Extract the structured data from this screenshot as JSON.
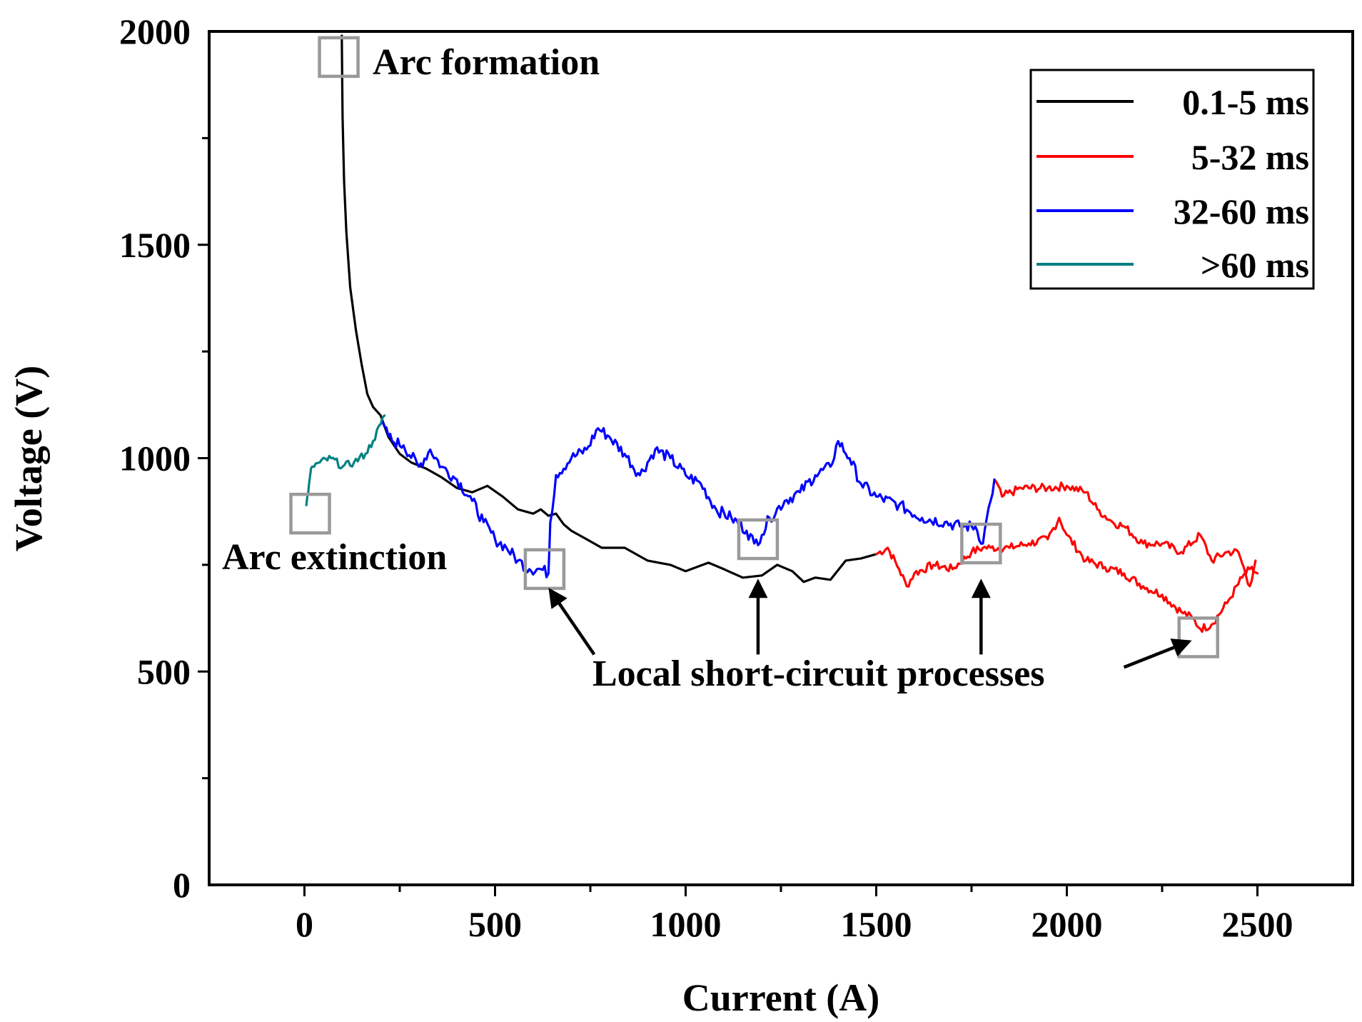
{
  "chart_data": {
    "type": "line",
    "title": "",
    "xlabel": "Current (A)",
    "ylabel": "Voltage (V)",
    "xlim": [
      -250,
      2750
    ],
    "ylim": [
      0,
      2000
    ],
    "xticks": [
      0,
      500,
      1000,
      1500,
      2000,
      2500
    ],
    "yticks": [
      0,
      500,
      1000,
      1500,
      2000
    ],
    "x_minor_step": 250,
    "y_minor_step": 250,
    "grid": false,
    "legend_position": "top-right",
    "series": [
      {
        "name": "0.1-5 ms",
        "color": "#000000",
        "noise": 0,
        "x": [
          98,
          100,
          104,
          110,
          120,
          135,
          150,
          165,
          180,
          200,
          220,
          250,
          280,
          320,
          360,
          400,
          440,
          480,
          520,
          560,
          600,
          620,
          640,
          660,
          680,
          700,
          740,
          780,
          840,
          900,
          960,
          1000,
          1060,
          1100,
          1150,
          1200,
          1240,
          1280,
          1310,
          1340,
          1380,
          1420,
          1460,
          1500
        ],
        "y": [
          1990,
          1800,
          1650,
          1530,
          1400,
          1300,
          1220,
          1150,
          1120,
          1100,
          1050,
          1010,
          990,
          975,
          955,
          930,
          920,
          935,
          910,
          880,
          870,
          880,
          865,
          870,
          845,
          830,
          810,
          790,
          790,
          760,
          750,
          735,
          755,
          740,
          720,
          725,
          750,
          735,
          710,
          720,
          715,
          760,
          765,
          775
        ]
      },
      {
        "name": "5-32 ms",
        "color": "#ff0000",
        "noise": 10,
        "x": [
          1500,
          1530,
          1560,
          1580,
          1600,
          1650,
          1700,
          1750,
          1780,
          1800,
          1850,
          1900,
          1950,
          1980,
          2000,
          2050,
          2100,
          2150,
          2200,
          2250,
          2300,
          2330,
          2350,
          2380,
          2420,
          2460,
          2480,
          2500,
          1810,
          1830,
          1880,
          1950,
          2000,
          2050,
          2080,
          2120,
          2150,
          2200,
          2250,
          2300,
          2350,
          2380,
          2420,
          2450,
          2480,
          2495
        ],
        "y": [
          775,
          790,
          740,
          700,
          730,
          750,
          740,
          780,
          790,
          790,
          790,
          800,
          810,
          860,
          820,
          760,
          745,
          730,
          700,
          680,
          640,
          625,
          600,
          610,
          660,
          720,
          740,
          730,
          950,
          910,
          930,
          930,
          935,
          920,
          880,
          850,
          840,
          800,
          800,
          780,
          820,
          760,
          780,
          780,
          700,
          760
        ],
        "segment_breaks": [
          28
        ]
      },
      {
        "name": "32-60 ms",
        "color": "#0000ff",
        "noise": 14,
        "x": [
          200,
          230,
          260,
          300,
          330,
          360,
          400,
          440,
          470,
          500,
          530,
          560,
          590,
          620,
          640,
          645,
          660,
          700,
          740,
          770,
          800,
          840,
          880,
          920,
          960,
          1000,
          1040,
          1080,
          1120,
          1160,
          1180,
          1200,
          1220,
          1260,
          1300,
          1340,
          1380,
          1400,
          1430,
          1460,
          1500,
          1560,
          1620,
          1680,
          1720,
          1760,
          1780,
          1790,
          1800,
          1810
        ],
        "y": [
          1080,
          1040,
          1030,
          980,
          1020,
          980,
          950,
          900,
          850,
          810,
          790,
          760,
          740,
          740,
          730,
          850,
          960,
          1000,
          1020,
          1070,
          1050,
          1010,
          960,
          1020,
          1000,
          960,
          940,
          880,
          860,
          830,
          800,
          820,
          860,
          900,
          920,
          960,
          980,
          1040,
          1000,
          940,
          910,
          890,
          860,
          850,
          840,
          840,
          800,
          860,
          900,
          950
        ]
      },
      {
        "name": ">60 ms",
        "color": "#008080",
        "noise": 9,
        "x": [
          5,
          10,
          15,
          20,
          40,
          70,
          100,
          130,
          160,
          180,
          200,
          210
        ],
        "y": [
          890,
          920,
          960,
          980,
          990,
          1000,
          980,
          990,
          1010,
          1040,
          1080,
          1100
        ]
      }
    ],
    "markers": [
      {
        "x": 90,
        "y": 1940
      },
      {
        "x": 15,
        "y": 870
      },
      {
        "x": 630,
        "y": 740
      },
      {
        "x": 1190,
        "y": 810
      },
      {
        "x": 1775,
        "y": 800
      },
      {
        "x": 2345,
        "y": 580
      }
    ],
    "annotations": {
      "arc_formation": "Arc formation",
      "arc_extinction": "Arc extinction",
      "short_circuit": "Local short-circuit processes"
    },
    "arrows": [
      {
        "from": [
          760,
          540
        ],
        "to": [
          645,
          690
        ]
      },
      {
        "from": [
          1190,
          540
        ],
        "to": [
          1190,
          710
        ]
      },
      {
        "from": [
          1775,
          540
        ],
        "to": [
          1775,
          710
        ]
      },
      {
        "from": [
          2150,
          510
        ],
        "to": [
          2320,
          570
        ]
      }
    ]
  }
}
